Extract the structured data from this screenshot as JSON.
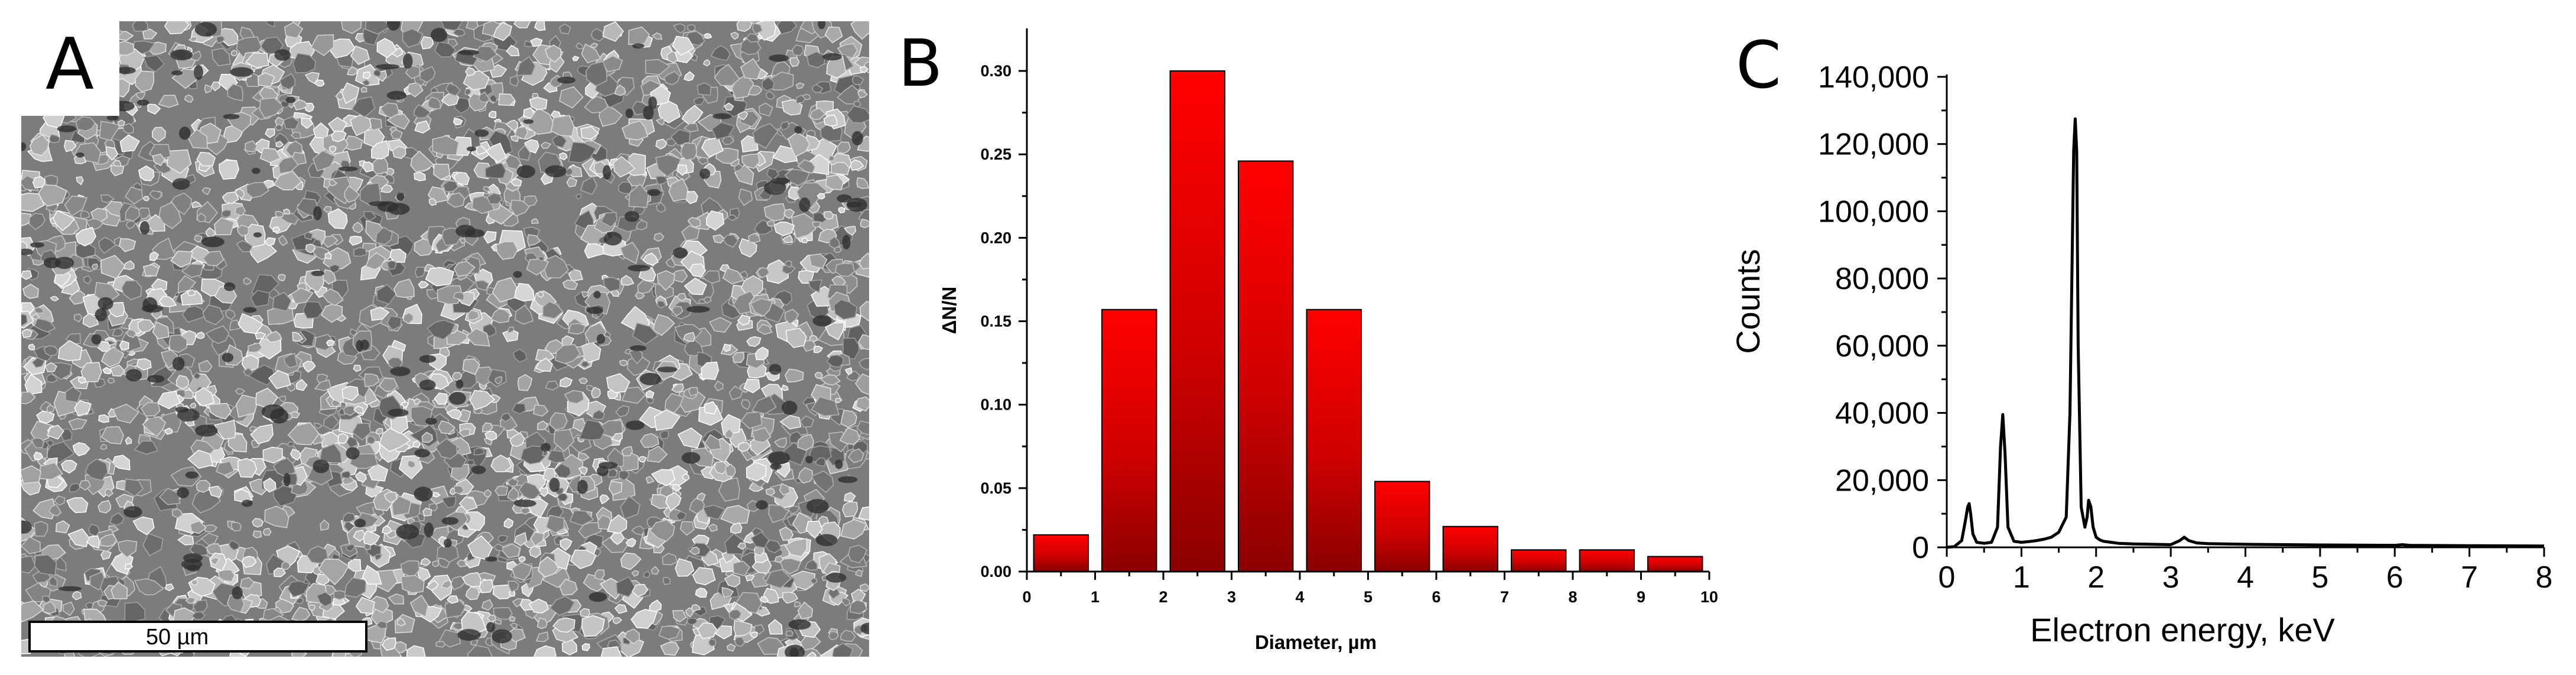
{
  "panels": {
    "a": {
      "label": "A",
      "scale_bar_label": "50 µm"
    },
    "b": {
      "label": "B"
    },
    "c": {
      "label": "C"
    }
  },
  "colors": {
    "bar_top": "#ff0000",
    "bar_bottom": "#8b0000",
    "bar_stroke": "#000000",
    "line": "#000000"
  },
  "chart_data": [
    {
      "type": "bar",
      "xlabel": "Diameter, µm",
      "ylabel": "ΔN/N",
      "xlim": [
        0,
        10
      ],
      "ylim": [
        0,
        0.3
      ],
      "x_ticks": [
        "0",
        "1",
        "2",
        "3",
        "4",
        "5",
        "6",
        "7",
        "8",
        "9",
        "10"
      ],
      "y_ticks": [
        "0.00",
        "0.05",
        "0.10",
        "0.15",
        "0.20",
        "0.25",
        "0.30"
      ],
      "bins": [
        {
          "x0": 0.1,
          "x1": 0.9,
          "value": 0.022
        },
        {
          "x0": 1.1,
          "x1": 1.9,
          "value": 0.157
        },
        {
          "x0": 2.1,
          "x1": 2.9,
          "value": 0.3
        },
        {
          "x0": 3.1,
          "x1": 3.9,
          "value": 0.246
        },
        {
          "x0": 4.1,
          "x1": 4.9,
          "value": 0.157
        },
        {
          "x0": 5.1,
          "x1": 5.9,
          "value": 0.054
        },
        {
          "x0": 6.1,
          "x1": 6.9,
          "value": 0.027
        },
        {
          "x0": 7.1,
          "x1": 7.9,
          "value": 0.013
        },
        {
          "x0": 8.1,
          "x1": 8.9,
          "value": 0.013
        },
        {
          "x0": 9.1,
          "x1": 9.9,
          "value": 0.009
        }
      ],
      "grid": false
    },
    {
      "type": "line",
      "xlabel": "Electron energy, keV",
      "ylabel": "Counts",
      "xlim": [
        0,
        8
      ],
      "ylim": [
        0,
        140000
      ],
      "x_ticks": [
        "0",
        "1",
        "2",
        "3",
        "4",
        "5",
        "6",
        "7",
        "8"
      ],
      "y_ticks": [
        "0",
        "20,000",
        "40,000",
        "60,000",
        "80,000",
        "100,000",
        "120,000",
        "140,000"
      ],
      "x": [
        0.0,
        0.1,
        0.2,
        0.25,
        0.28,
        0.3,
        0.32,
        0.35,
        0.4,
        0.5,
        0.6,
        0.68,
        0.72,
        0.75,
        0.78,
        0.82,
        0.9,
        1.0,
        1.1,
        1.2,
        1.3,
        1.4,
        1.5,
        1.6,
        1.65,
        1.7,
        1.72,
        1.74,
        1.76,
        1.8,
        1.85,
        1.88,
        1.9,
        1.93,
        1.96,
        2.0,
        2.05,
        2.1,
        2.2,
        2.3,
        2.5,
        3.0,
        3.12,
        3.18,
        3.24,
        3.35,
        3.5,
        4.0,
        5.0,
        6.0,
        6.1,
        6.2,
        7.0,
        8.0
      ],
      "y": [
        0,
        200,
        2000,
        8000,
        12000,
        13000,
        10000,
        4000,
        1500,
        1200,
        1500,
        6000,
        30000,
        39500,
        28000,
        6000,
        1800,
        1500,
        1700,
        2000,
        2400,
        3000,
        4500,
        9000,
        40000,
        118000,
        127500,
        118000,
        60000,
        12000,
        6000,
        9000,
        14000,
        12000,
        6000,
        3000,
        2200,
        1800,
        1500,
        1200,
        1000,
        800,
        2000,
        3000,
        2000,
        1300,
        1100,
        900,
        700,
        600,
        800,
        600,
        500,
        400
      ],
      "grid": false
    }
  ]
}
